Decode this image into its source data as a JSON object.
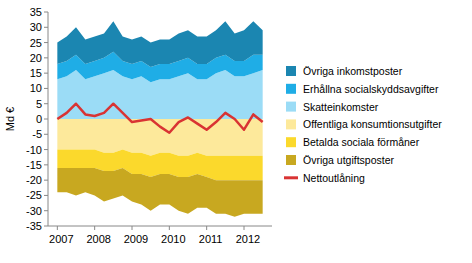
{
  "chart_data": {
    "type": "area",
    "stacked": true,
    "y_label": "Md €",
    "x": [
      2007,
      2007.25,
      2007.5,
      2007.75,
      2008,
      2008.25,
      2008.5,
      2008.75,
      2009,
      2009.25,
      2009.5,
      2009.75,
      2010,
      2010.25,
      2010.5,
      2010.75,
      2011,
      2011.25,
      2011.5,
      2011.75,
      2012,
      2012.25,
      2012.5
    ],
    "xlim": [
      2006.75,
      2012.75
    ],
    "xticks": [
      2007,
      2008,
      2009,
      2010,
      2011,
      2012
    ],
    "ylim": [
      -35,
      35
    ],
    "yticks": [
      -35,
      -30,
      -25,
      -20,
      -15,
      -10,
      -5,
      0,
      5,
      10,
      15,
      20,
      25,
      30,
      35
    ],
    "grid": false,
    "legend": "right",
    "series": [
      {
        "name": "Övriga inkomstposter",
        "color": "#1b86b1",
        "type": "area",
        "values": [
          7,
          8,
          9,
          8,
          8,
          8,
          10,
          8,
          8,
          8,
          8,
          8,
          8,
          9,
          9,
          9,
          9,
          9,
          11,
          9,
          10,
          11,
          8
        ]
      },
      {
        "name": "Erhållna socialskyddsavgifter",
        "color": "#1fade6",
        "type": "area",
        "values": [
          5,
          5,
          5,
          5,
          5,
          5,
          6,
          5,
          5,
          5,
          5,
          5,
          5,
          5,
          5,
          5,
          5,
          5,
          5,
          5,
          5,
          6,
          5
        ]
      },
      {
        "name": "Skatteinkomster",
        "color": "#9bdcf6",
        "type": "area",
        "values": [
          13,
          14,
          16,
          13,
          14,
          15,
          16,
          14,
          13,
          14,
          12,
          13,
          13,
          14,
          15,
          13,
          13,
          15,
          16,
          14,
          14,
          15,
          16
        ]
      },
      {
        "name": "Offentliga konsumtionsutgifter",
        "color": "#fde99b",
        "type": "area",
        "values": [
          -10,
          -10,
          -10,
          -10,
          -10,
          -11,
          -11,
          -10,
          -11,
          -11,
          -12,
          -11,
          -11,
          -12,
          -12,
          -11,
          -12,
          -12,
          -12,
          -12,
          -12,
          -12,
          -12
        ]
      },
      {
        "name": "Betalda sociala förmåner",
        "color": "#fbd92c",
        "type": "area",
        "values": [
          -6,
          -6,
          -6,
          -6,
          -6,
          -6,
          -6,
          -6,
          -7,
          -7,
          -7,
          -7,
          -7,
          -7,
          -7,
          -7,
          -7,
          -8,
          -8,
          -8,
          -8,
          -8,
          -8
        ]
      },
      {
        "name": "Övriga utgiftsposter",
        "color": "#c8a820",
        "type": "area",
        "values": [
          -8,
          -8,
          -9,
          -8,
          -9,
          -10,
          -9,
          -9,
          -9,
          -10,
          -11,
          -10,
          -10,
          -11,
          -12,
          -11,
          -10,
          -11,
          -11,
          -12,
          -11,
          -11,
          -11
        ]
      },
      {
        "name": "Nettoutlåning",
        "color": "#d93333",
        "type": "line",
        "values": [
          0,
          2,
          5,
          1.5,
          1,
          2,
          5,
          2,
          -1,
          -0.5,
          0,
          -2.5,
          -4.5,
          -1,
          0.5,
          -1.5,
          -3.5,
          -1,
          2,
          0,
          -3.5,
          1.5,
          -1
        ]
      }
    ]
  }
}
